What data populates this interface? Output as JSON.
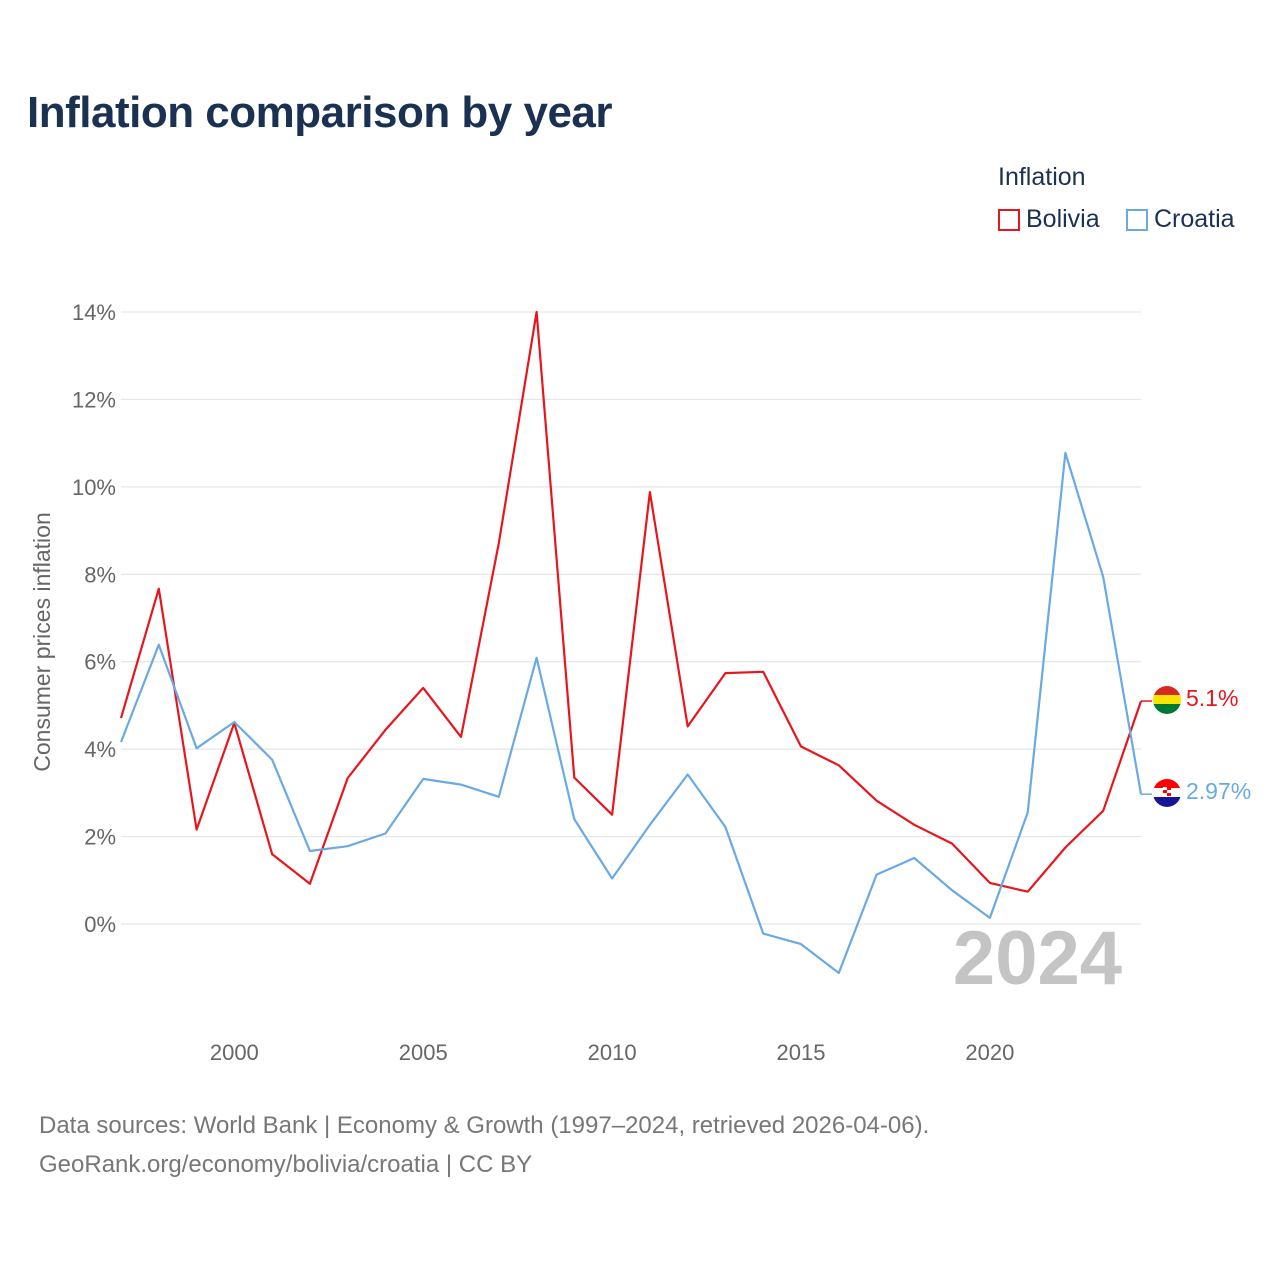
{
  "chart_data": {
    "type": "line",
    "title": "Inflation comparison by year",
    "ylabel": "Consumer prices inflation",
    "xlabel": "",
    "legend_title": "Inflation",
    "legend_position": "top-right",
    "x": [
      1997,
      1998,
      1999,
      2000,
      2001,
      2002,
      2003,
      2004,
      2005,
      2006,
      2007,
      2008,
      2009,
      2010,
      2011,
      2012,
      2013,
      2014,
      2015,
      2016,
      2017,
      2018,
      2019,
      2020,
      2021,
      2022,
      2023,
      2024
    ],
    "series": [
      {
        "name": "Bolivia",
        "color": "#e8161c",
        "values": [
          4.71,
          7.67,
          2.16,
          4.6,
          1.6,
          0.92,
          3.34,
          4.44,
          5.4,
          4.28,
          8.71,
          14.0,
          3.35,
          2.5,
          9.88,
          4.52,
          5.74,
          5.77,
          4.06,
          3.63,
          2.82,
          2.27,
          1.84,
          0.94,
          0.74,
          1.75,
          2.59,
          5.1
        ],
        "end_label": "5.1%",
        "flag": "bolivia-flag-icon"
      },
      {
        "name": "Croatia",
        "color": "#6aaae4",
        "values": [
          4.16,
          6.39,
          4.02,
          4.62,
          3.76,
          1.67,
          1.78,
          2.07,
          3.32,
          3.19,
          2.91,
          6.09,
          2.4,
          1.04,
          2.27,
          3.42,
          2.22,
          -0.22,
          -0.46,
          -1.12,
          1.13,
          1.51,
          0.77,
          0.14,
          2.55,
          10.78,
          7.94,
          2.97
        ],
        "end_label": "2.97%",
        "flag": "croatia-flag-icon"
      }
    ],
    "ylim": [
      -2,
      14
    ],
    "yticks": [
      0,
      2,
      4,
      6,
      8,
      10,
      12,
      14
    ],
    "ytick_labels": [
      "0%",
      "2%",
      "4%",
      "6%",
      "8%",
      "10%",
      "12%",
      "14%"
    ],
    "xlim": [
      1997,
      2024
    ],
    "xticks": [
      2000,
      2005,
      2010,
      2015,
      2020
    ],
    "xtick_labels": [
      "2000",
      "2005",
      "2010",
      "2015",
      "2020"
    ],
    "current_year_label": "2024",
    "grid": true
  },
  "footer": {
    "line1": "Data sources: World Bank | Economy & Growth (1997–2024, retrieved 2026-04-06).",
    "line2": "GeoRank.org/economy/bolivia/croatia | CC BY"
  }
}
